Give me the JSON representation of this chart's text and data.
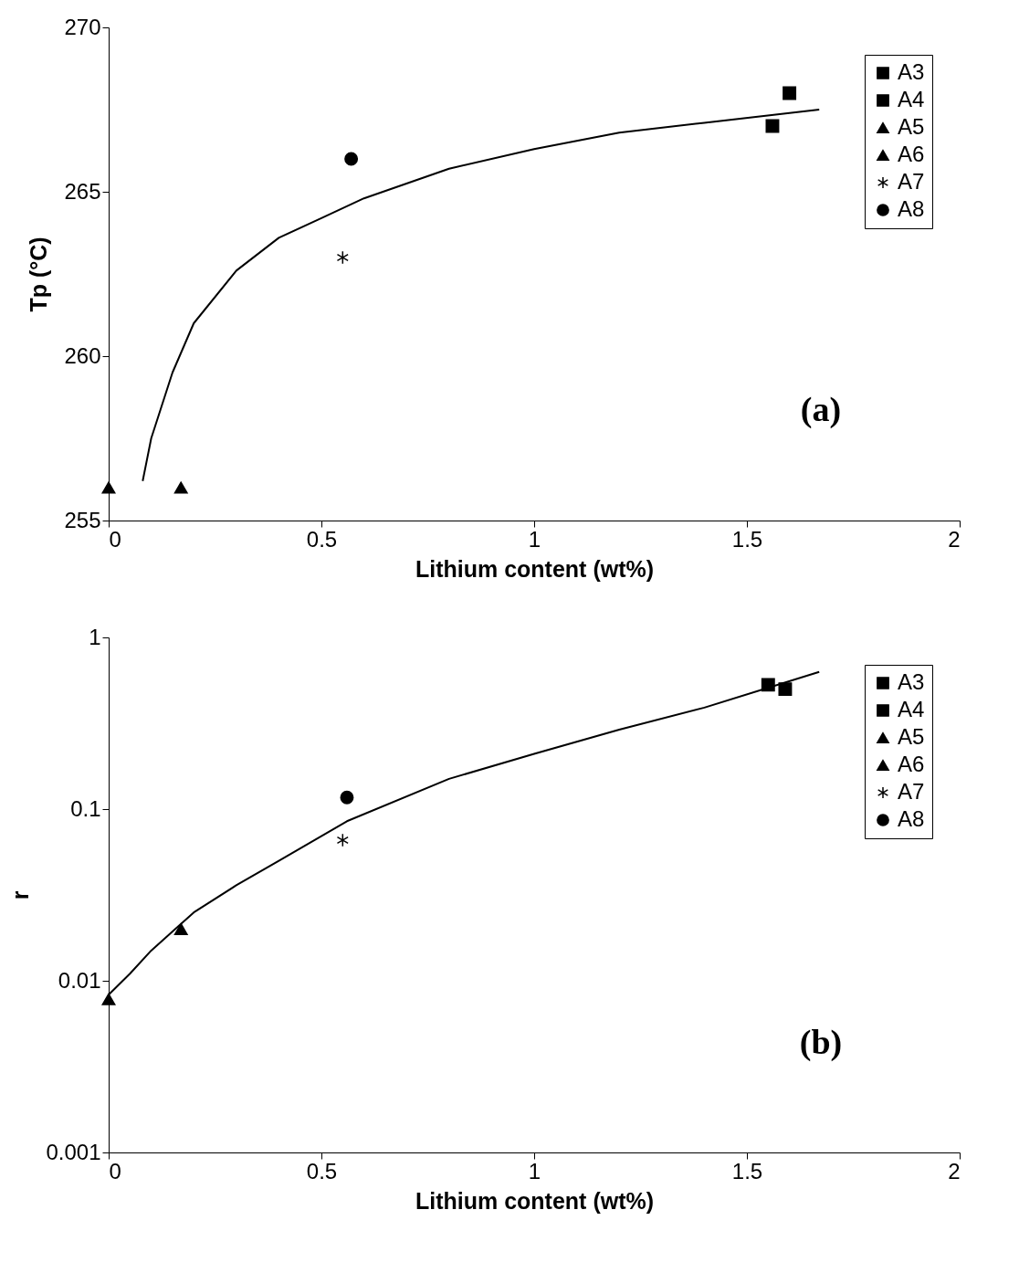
{
  "chart_data": [
    {
      "type": "scatter",
      "xlabel": "Lithium content (wt%)",
      "ylabel": "Tp (°C)",
      "annotations": [
        "(a)"
      ],
      "xlim": [
        0,
        2
      ],
      "xticks": [
        0,
        0.5,
        1,
        1.5,
        2
      ],
      "ylim": [
        255,
        270
      ],
      "yticks": [
        255,
        260,
        265,
        270
      ],
      "grid": false,
      "legend": "top right",
      "series": [
        {
          "name": "A3",
          "color": "#000000",
          "marker": "square",
          "x": [
            1.56
          ],
          "values": [
            267
          ]
        },
        {
          "name": "A4",
          "color": "#000000",
          "marker": "square",
          "x": [
            1.6
          ],
          "values": [
            268
          ]
        },
        {
          "name": "A5",
          "color": "#000000",
          "marker": "triangle",
          "x": [
            0.17
          ],
          "values": [
            256
          ]
        },
        {
          "name": "A6",
          "color": "#000000",
          "marker": "triangle",
          "x": [
            0
          ],
          "values": [
            256
          ]
        },
        {
          "name": "A7",
          "color": "#000000",
          "marker": "cross",
          "x": [
            0.55
          ],
          "values": [
            263
          ]
        },
        {
          "name": "A8",
          "color": "#000000",
          "marker": "circle",
          "x": [
            0.57
          ],
          "values": [
            266
          ]
        },
        {
          "type": "line",
          "color": "#000000",
          "marker": "none",
          "x": [
            0.08,
            0.1,
            0.15,
            0.2,
            0.3,
            0.4,
            0.5,
            0.6,
            0.8,
            1.0,
            1.2,
            1.4,
            1.67
          ],
          "values": [
            256.2,
            257.5,
            259.5,
            261,
            262.6,
            263.6,
            264.2,
            264.8,
            265.7,
            266.3,
            266.8,
            267.1,
            267.5
          ]
        }
      ]
    },
    {
      "type": "scatter",
      "xlabel": "Lithium content (wt%)",
      "ylabel": "r",
      "annotations": [
        "(b)"
      ],
      "log": "y",
      "xlim": [
        0,
        2
      ],
      "xticks": [
        0,
        0.5,
        1,
        1.5,
        2
      ],
      "ylim": [
        0.001,
        1
      ],
      "yticks": [
        0.001,
        0.01,
        0.1,
        1
      ],
      "grid": false,
      "legend": "top right",
      "series": [
        {
          "name": "A3",
          "color": "#000000",
          "marker": "square",
          "x": [
            1.55
          ],
          "values": [
            0.53
          ]
        },
        {
          "name": "A4",
          "color": "#000000",
          "marker": "square",
          "x": [
            1.59
          ],
          "values": [
            0.5
          ]
        },
        {
          "name": "A5",
          "color": "#000000",
          "marker": "triangle",
          "x": [
            0.17
          ],
          "values": [
            0.02
          ]
        },
        {
          "name": "A6",
          "color": "#000000",
          "marker": "triangle",
          "x": [
            0
          ],
          "values": [
            0.0078
          ]
        },
        {
          "name": "A7",
          "color": "#000000",
          "marker": "cross",
          "x": [
            0.55
          ],
          "values": [
            0.066
          ]
        },
        {
          "name": "A8",
          "color": "#000000",
          "marker": "circle",
          "x": [
            0.56
          ],
          "values": [
            0.117
          ]
        },
        {
          "type": "line",
          "color": "#000000",
          "marker": "none",
          "x": [
            0,
            0.05,
            0.1,
            0.2,
            0.3,
            0.4,
            0.56,
            0.8,
            1.0,
            1.2,
            1.4,
            1.67
          ],
          "values": [
            0.0083,
            0.011,
            0.015,
            0.025,
            0.036,
            0.05,
            0.085,
            0.15,
            0.21,
            0.29,
            0.39,
            0.63
          ]
        }
      ]
    }
  ]
}
